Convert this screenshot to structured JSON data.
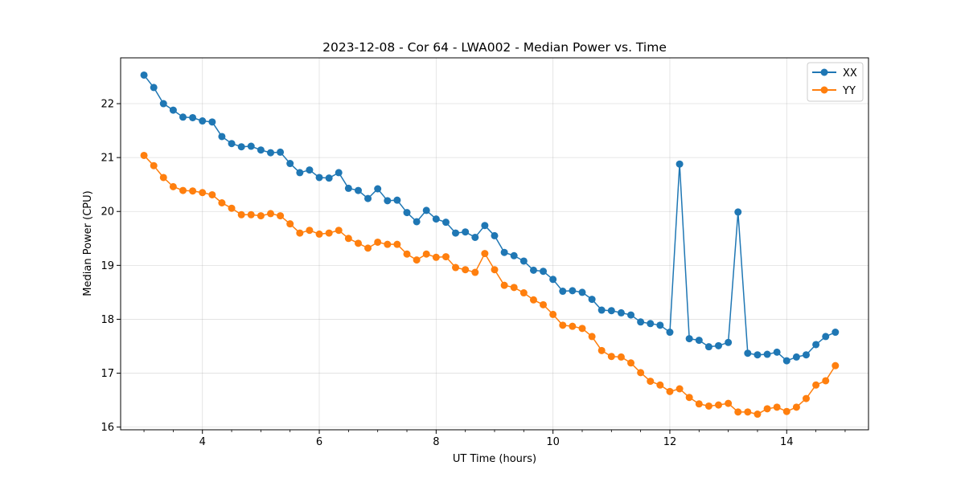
{
  "chart_data": {
    "type": "line",
    "title": "2023-12-08 - Cor 64 - LWA002 - Median Power vs. Time",
    "xlabel": "UT Time (hours)",
    "ylabel": "Median Power (CPU)",
    "xlim": [
      2.6,
      15.4
    ],
    "ylim": [
      15.95,
      22.85
    ],
    "xticks": [
      4,
      6,
      8,
      10,
      12,
      14
    ],
    "xtick_labels": [
      "4",
      "6",
      "8",
      "10",
      "12",
      "14"
    ],
    "yticks": [
      16,
      17,
      18,
      19,
      20,
      21,
      22
    ],
    "ytick_labels": [
      "16",
      "17",
      "18",
      "19",
      "20",
      "21",
      "22"
    ],
    "grid": true,
    "legend_position": "top-right",
    "x": [
      3.0,
      3.167,
      3.333,
      3.5,
      3.667,
      3.833,
      4.0,
      4.167,
      4.333,
      4.5,
      4.667,
      4.833,
      5.0,
      5.167,
      5.333,
      5.5,
      5.667,
      5.833,
      6.0,
      6.167,
      6.333,
      6.5,
      6.667,
      6.833,
      7.0,
      7.167,
      7.333,
      7.5,
      7.667,
      7.833,
      8.0,
      8.167,
      8.333,
      8.5,
      8.667,
      8.833,
      9.0,
      9.167,
      9.333,
      9.5,
      9.667,
      9.833,
      10.0,
      10.167,
      10.333,
      10.5,
      10.667,
      10.833,
      11.0,
      11.167,
      11.333,
      11.5,
      11.667,
      11.833,
      12.0,
      12.167,
      12.333,
      12.5,
      12.667,
      12.833,
      13.0,
      13.167,
      13.333,
      13.5,
      13.667,
      13.833,
      14.0,
      14.167,
      14.333,
      14.5,
      14.667,
      14.833
    ],
    "series": [
      {
        "name": "XX",
        "color": "#1f77b4",
        "values": [
          22.53,
          22.3,
          22.0,
          21.88,
          21.75,
          21.74,
          21.68,
          21.66,
          21.39,
          21.26,
          21.2,
          21.21,
          21.14,
          21.09,
          21.1,
          20.89,
          20.72,
          20.77,
          20.63,
          20.62,
          20.72,
          20.43,
          20.39,
          20.24,
          20.42,
          20.2,
          20.21,
          19.98,
          19.81,
          20.02,
          19.86,
          19.8,
          19.6,
          19.62,
          19.52,
          19.74,
          19.55,
          19.24,
          19.18,
          19.08,
          18.91,
          18.89,
          18.74,
          18.52,
          18.53,
          18.5,
          18.37,
          18.17,
          18.16,
          18.12,
          18.08,
          17.95,
          17.92,
          17.89,
          17.76,
          20.88,
          17.64,
          17.61,
          17.49,
          17.51,
          17.57,
          19.99,
          17.37,
          17.34,
          17.35,
          17.39,
          17.23,
          17.3,
          17.34,
          17.53,
          17.68,
          17.76
        ]
      },
      {
        "name": "YY",
        "color": "#ff7f0e",
        "values": [
          21.04,
          20.85,
          20.63,
          20.46,
          20.39,
          20.38,
          20.35,
          20.31,
          20.16,
          20.06,
          19.94,
          19.94,
          19.92,
          19.96,
          19.92,
          19.77,
          19.6,
          19.65,
          19.58,
          19.6,
          19.65,
          19.5,
          19.41,
          19.32,
          19.43,
          19.39,
          19.39,
          19.21,
          19.1,
          19.21,
          19.15,
          19.16,
          18.96,
          18.92,
          18.87,
          19.22,
          18.92,
          18.63,
          18.59,
          18.49,
          18.36,
          18.27,
          18.09,
          17.89,
          17.87,
          17.83,
          17.68,
          17.42,
          17.31,
          17.3,
          17.19,
          17.01,
          16.85,
          16.78,
          16.66,
          16.71,
          16.55,
          16.43,
          16.39,
          16.41,
          16.44,
          16.28,
          16.28,
          16.24,
          16.34,
          16.37,
          16.29,
          16.37,
          16.53,
          16.78,
          16.86,
          17.14
        ]
      }
    ]
  }
}
